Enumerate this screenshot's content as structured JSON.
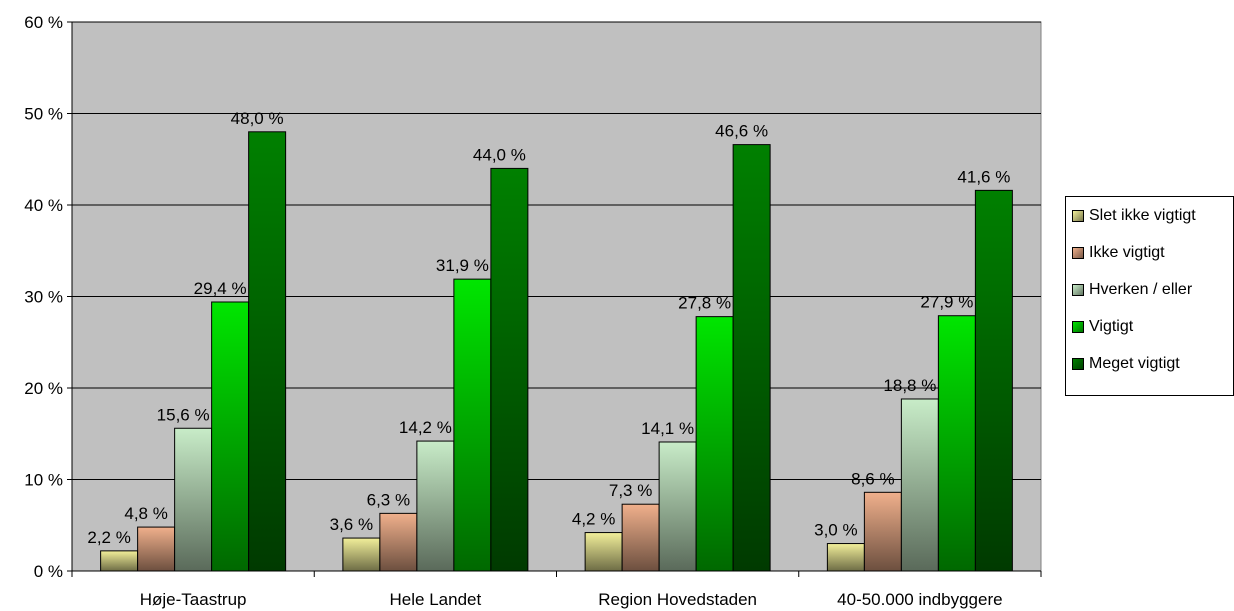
{
  "chart_data": {
    "type": "bar",
    "categories": [
      "Høje-Taastrup",
      "Hele Landet",
      "Region Hovedstaden",
      "40-50.000 indbyggere"
    ],
    "series": [
      {
        "name": "Slet ikke vigtigt",
        "values": [
          2.2,
          3.6,
          4.2,
          3.0
        ],
        "labels": [
          "2,2 %",
          "3,6 %",
          "4,2 %",
          "3,0 %"
        ],
        "color": "#f2ef9a"
      },
      {
        "name": "Ikke vigtigt",
        "values": [
          4.8,
          6.3,
          7.3,
          8.6
        ],
        "labels": [
          "4,8 %",
          "6,3 %",
          "7,3 %",
          "8,6 %"
        ],
        "color": "#f0b08c"
      },
      {
        "name": "Hverken / eller",
        "values": [
          15.6,
          14.2,
          14.1,
          18.8
        ],
        "labels": [
          "15,6 %",
          "14,2 %",
          "14,1 %",
          "18,8 %"
        ],
        "color": "#c8ecc8"
      },
      {
        "name": "Vigtigt",
        "values": [
          29.4,
          31.9,
          27.8,
          27.9
        ],
        "labels": [
          "29,4 %",
          "31,9 %",
          "27,8 %",
          "27,9 %"
        ],
        "color": "#00e600"
      },
      {
        "name": "Meget vigtigt",
        "values": [
          48.0,
          44.0,
          46.6,
          41.6
        ],
        "labels": [
          "48,0 %",
          "44,0 %",
          "46,6 %",
          "41,6 %"
        ],
        "color": "#008000"
      }
    ],
    "yticks": [
      "0 %",
      "10 %",
      "20 %",
      "30 %",
      "40 %",
      "50 %",
      "60 %"
    ],
    "ylim": [
      0,
      60
    ],
    "grid": true,
    "plot_background": "#c0c0c0",
    "legend_position": "right",
    "title": "",
    "xlabel": "",
    "ylabel": ""
  }
}
